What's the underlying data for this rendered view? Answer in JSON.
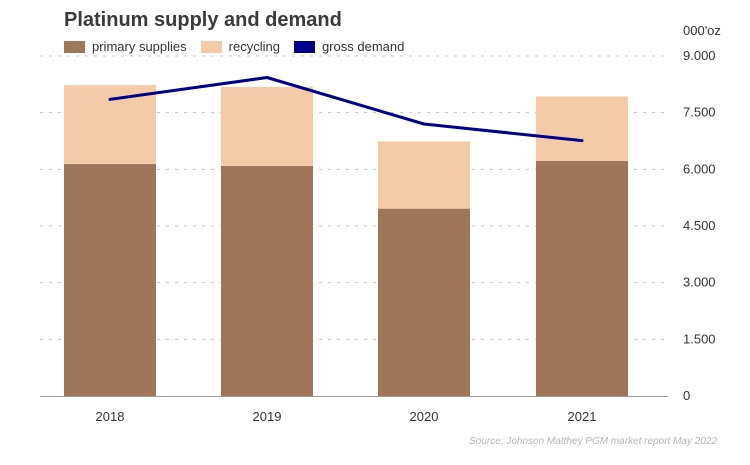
{
  "chart_data": {
    "type": "bar",
    "title": "Platinum supply and demand",
    "unit_label": "000'oz",
    "categories": [
      "2018",
      "2019",
      "2020",
      "2021"
    ],
    "series": [
      {
        "name": "primary supplies",
        "type": "bar",
        "stacked": true,
        "values": [
          6140,
          6090,
          4960,
          6220
        ],
        "color": "#a0765a"
      },
      {
        "name": "recycling",
        "type": "bar",
        "stacked": true,
        "values": [
          2090,
          2090,
          1780,
          1710
        ],
        "color": "#f5cba7"
      },
      {
        "name": "gross demand",
        "type": "line",
        "values": [
          7850,
          8430,
          7200,
          6760
        ],
        "color": "#00008b"
      }
    ],
    "y_ticks": [
      "0",
      "1.500",
      "3.000",
      "4.500",
      "6.000",
      "7.500",
      "9.000"
    ],
    "ylim": [
      0,
      9000
    ],
    "y_axis_side": "right",
    "grid": "dashed horizontal",
    "legend_position": "top-left",
    "source": "Source: Johnson Matthey PGM market report May 2022"
  }
}
